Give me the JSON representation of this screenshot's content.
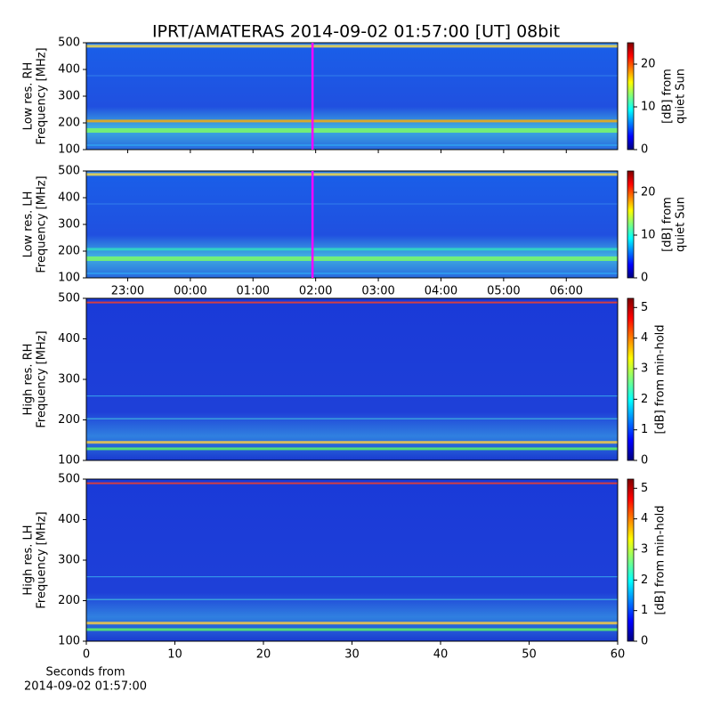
{
  "title": "IPRT/AMATERAS 2014-09-02 01:57:00 [UT]   08bit",
  "chart_data": [
    {
      "type": "heatmap",
      "ylabel": [
        "Low res. RH",
        "Frequency [MHz]"
      ],
      "ylim": [
        100,
        500
      ],
      "yticks": [
        100,
        200,
        300,
        400,
        500
      ],
      "xlim": [
        22.34,
        30.82
      ],
      "marker": 25.95,
      "marker_color": "#ff00ff",
      "clabel": [
        "[dB] from",
        "quiet Sun"
      ],
      "clim": [
        0,
        25
      ],
      "cticks": [
        0,
        10,
        20
      ]
    },
    {
      "type": "heatmap",
      "ylabel": [
        "Low res. LH",
        "Frequency [MHz]"
      ],
      "ylim": [
        100,
        500
      ],
      "yticks": [
        100,
        200,
        300,
        400,
        500
      ],
      "xlim": [
        22.34,
        30.82
      ],
      "marker": 25.95,
      "marker_color": "#ff00ff",
      "xticks": [
        {
          "value": 23,
          "label": "23:00"
        },
        {
          "value": 24,
          "label": "00:00"
        },
        {
          "value": 25,
          "label": "01:00"
        },
        {
          "value": 26,
          "label": "02:00"
        },
        {
          "value": 27,
          "label": "03:00"
        },
        {
          "value": 28,
          "label": "04:00"
        },
        {
          "value": 29,
          "label": "05:00"
        },
        {
          "value": 30,
          "label": "06:00"
        }
      ],
      "clabel": [
        "[dB] from",
        "quiet Sun"
      ],
      "clim": [
        0,
        25
      ],
      "cticks": [
        0,
        10,
        20
      ]
    },
    {
      "type": "heatmap",
      "ylabel": [
        "High res. RH",
        "Frequency [MHz]"
      ],
      "ylim": [
        100,
        500
      ],
      "yticks": [
        100,
        200,
        300,
        400,
        500
      ],
      "xlim": [
        0,
        60
      ],
      "clabel": [
        "[dB] from min-hold"
      ],
      "clim": [
        0,
        5.3
      ],
      "cticks": [
        0,
        1,
        2,
        3,
        4,
        5
      ]
    },
    {
      "type": "heatmap",
      "ylabel": [
        "High res. LH",
        "Frequency [MHz]"
      ],
      "ylim": [
        100,
        500
      ],
      "yticks": [
        100,
        200,
        300,
        400,
        500
      ],
      "xlim": [
        0,
        60
      ],
      "xticks": [
        0,
        10,
        20,
        30,
        40,
        50,
        60
      ],
      "xlabel": [
        "Seconds from",
        "2014-09-02 01:57:00"
      ],
      "clabel": [
        "[dB] from min-hold"
      ],
      "clim": [
        0,
        5.3
      ],
      "cticks": [
        0,
        1,
        2,
        3,
        4,
        5
      ]
    }
  ]
}
